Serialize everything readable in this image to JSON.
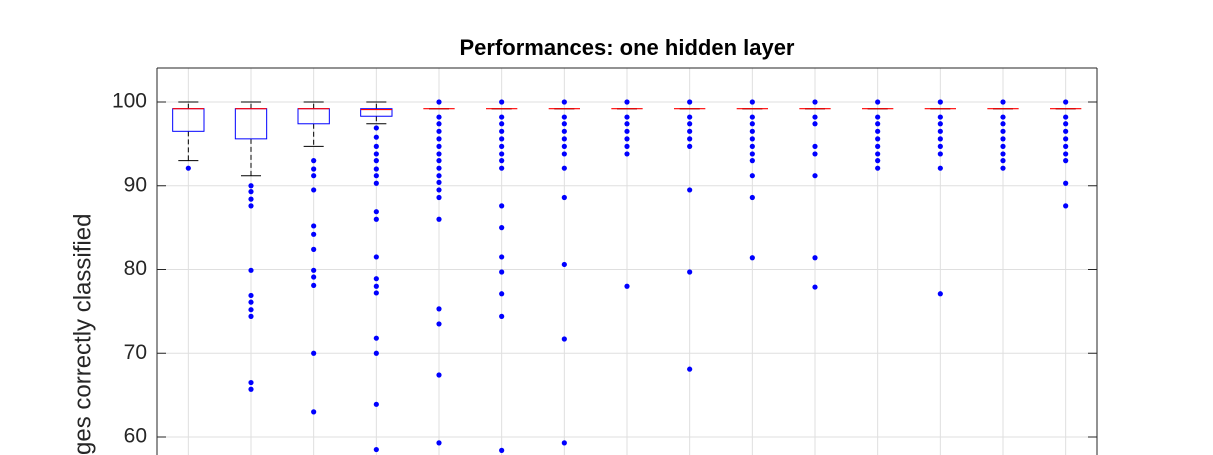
{
  "chart_data": {
    "type": "box",
    "title": "Performances: one hidden layer",
    "y_label": "ges correctly classified",
    "categories": [
      null,
      null,
      null,
      null,
      null,
      null,
      null,
      null,
      null,
      null,
      null,
      null,
      null,
      null,
      null
    ],
    "ylim": [
      57.85,
      104.06
    ],
    "yticks": [
      60,
      70,
      80,
      90,
      100
    ],
    "grid": true,
    "box_color": "#0000ff",
    "median_color": "#ff0000",
    "whisker_color": "#000000",
    "outlier_color": "#0000ff",
    "boxes": [
      {
        "whisker_low": 93.0,
        "q1": 96.5,
        "median": 99.2,
        "q3": 99.2,
        "whisker_high": 100,
        "outliers": [
          92.1
        ]
      },
      {
        "whisker_low": 91.2,
        "q1": 95.6,
        "median": 99.2,
        "q3": 99.2,
        "whisker_high": 100,
        "outliers": [
          90.0,
          89.3,
          88.4,
          87.6,
          79.9,
          76.9,
          76.1,
          75.2,
          74.4,
          66.5,
          65.7
        ]
      },
      {
        "whisker_low": 94.7,
        "q1": 97.4,
        "median": 99.2,
        "q3": 99.2,
        "whisker_high": 100,
        "outliers": [
          93.0,
          92.0,
          91.2,
          89.5,
          85.2,
          84.2,
          82.4,
          79.9,
          79.1,
          78.1,
          70.0,
          63.0
        ]
      },
      {
        "whisker_low": 97.4,
        "q1": 98.3,
        "median": 99.1,
        "q3": 99.2,
        "whisker_high": 100,
        "outliers": [
          96.9,
          95.8,
          94.7,
          93.8,
          93.0,
          92.0,
          91.2,
          90.3,
          86.9,
          86.0,
          81.5,
          78.9,
          78.0,
          77.2,
          71.8,
          70.0,
          63.9,
          58.5
        ]
      },
      {
        "whisker_low": 99.2,
        "q1": 99.2,
        "median": 99.2,
        "q3": 99.2,
        "whisker_high": 99.2,
        "outliers": [
          100,
          98.2,
          97.4,
          96.5,
          95.6,
          94.7,
          93.8,
          93.0,
          92.1,
          91.2,
          90.4,
          89.5,
          88.6,
          86.0,
          75.3,
          73.5,
          67.4,
          59.3
        ]
      },
      {
        "whisker_low": 99.2,
        "q1": 99.2,
        "median": 99.2,
        "q3": 99.2,
        "whisker_high": 99.2,
        "outliers": [
          100,
          98.2,
          97.4,
          96.5,
          95.6,
          94.7,
          93.8,
          93.0,
          92.1,
          87.6,
          85.0,
          81.5,
          79.7,
          77.1,
          74.4,
          58.4
        ]
      },
      {
        "whisker_low": 99.2,
        "q1": 99.2,
        "median": 99.2,
        "q3": 99.2,
        "whisker_high": 99.2,
        "outliers": [
          100,
          98.2,
          97.4,
          96.5,
          95.6,
          94.7,
          93.8,
          92.1,
          88.6,
          80.6,
          71.7,
          59.3
        ]
      },
      {
        "whisker_low": 99.2,
        "q1": 99.2,
        "median": 99.2,
        "q3": 99.2,
        "whisker_high": 99.2,
        "outliers": [
          100,
          98.2,
          97.4,
          96.5,
          95.6,
          94.7,
          93.8,
          78.0
        ]
      },
      {
        "whisker_low": 99.2,
        "q1": 99.2,
        "median": 99.2,
        "q3": 99.2,
        "whisker_high": 99.2,
        "outliers": [
          100,
          98.2,
          97.4,
          96.5,
          95.6,
          94.7,
          89.5,
          79.7,
          68.1
        ]
      },
      {
        "whisker_low": 99.2,
        "q1": 99.2,
        "median": 99.2,
        "q3": 99.2,
        "whisker_high": 99.2,
        "outliers": [
          100,
          98.2,
          97.4,
          96.5,
          95.6,
          94.7,
          93.8,
          93.0,
          91.2,
          88.6,
          81.4
        ]
      },
      {
        "whisker_low": 99.2,
        "q1": 99.2,
        "median": 99.2,
        "q3": 99.2,
        "whisker_high": 99.2,
        "outliers": [
          100,
          98.2,
          97.4,
          94.7,
          93.8,
          91.2,
          81.4,
          77.9
        ]
      },
      {
        "whisker_low": 99.2,
        "q1": 99.2,
        "median": 99.2,
        "q3": 99.2,
        "whisker_high": 99.2,
        "outliers": [
          100,
          98.2,
          97.4,
          96.5,
          95.6,
          94.7,
          93.8,
          93.0,
          92.1
        ]
      },
      {
        "whisker_low": 99.2,
        "q1": 99.2,
        "median": 99.2,
        "q3": 99.2,
        "whisker_high": 99.2,
        "outliers": [
          100,
          98.2,
          97.4,
          96.5,
          95.6,
          94.7,
          93.8,
          92.1,
          77.1
        ]
      },
      {
        "whisker_low": 99.2,
        "q1": 99.2,
        "median": 99.2,
        "q3": 99.2,
        "whisker_high": 99.2,
        "outliers": [
          100,
          98.2,
          97.4,
          96.5,
          95.6,
          94.7,
          93.8,
          93.0,
          92.1
        ]
      },
      {
        "whisker_low": 99.2,
        "q1": 99.2,
        "median": 99.2,
        "q3": 99.2,
        "whisker_high": 99.2,
        "outliers": [
          100,
          98.2,
          97.4,
          96.5,
          95.6,
          94.7,
          93.8,
          93.0,
          90.3,
          87.6
        ]
      }
    ]
  }
}
